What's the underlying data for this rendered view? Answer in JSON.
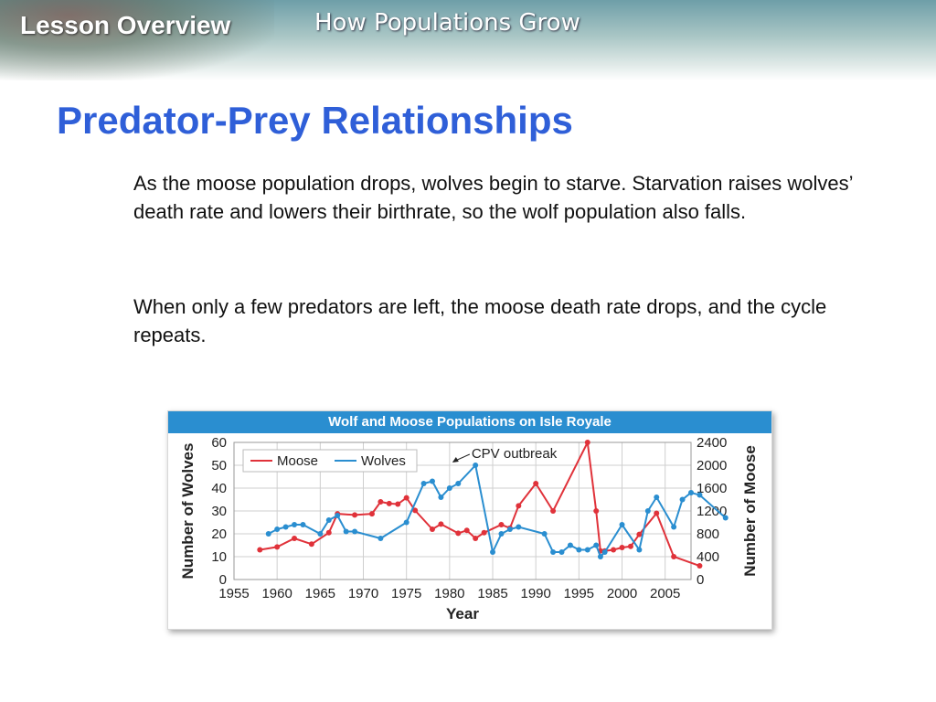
{
  "header": {
    "section": "Lesson Overview",
    "topic": "How Populations Grow"
  },
  "slide": {
    "title": "Predator-Prey Relationships",
    "paragraphs": [
      "As the moose population drops, wolves begin to starve. Starvation raises wolves’ death rate and lowers their birthrate, so the wolf population also falls.",
      "When only a few predators are left, the moose death rate drops, and the cycle repeats."
    ]
  },
  "colors": {
    "moose": "#e0323a",
    "wolves": "#2a8ed0",
    "header_bar": "#2a8ed0",
    "title": "#2f5fd8"
  },
  "chart_data": {
    "type": "line",
    "title": "Wolf and  Moose Populations on Isle Royale",
    "xlabel": "Year",
    "ylabel_left": "Number of Wolves",
    "ylabel_right": "Number of Moose",
    "xlim": [
      1955,
      2008
    ],
    "ylim_left": [
      0,
      60
    ],
    "ylim_right": [
      0,
      2400
    ],
    "x_ticks": [
      1955,
      1960,
      1965,
      1970,
      1975,
      1980,
      1985,
      1990,
      1995,
      2000,
      2005
    ],
    "y_ticks_left": [
      0,
      10,
      20,
      30,
      40,
      50,
      60
    ],
    "y_ticks_right": [
      0,
      400,
      800,
      1200,
      1600,
      2000,
      2400
    ],
    "grid": true,
    "legend": "top-left",
    "annotation": {
      "text": "CPV outbreak",
      "x": 1980,
      "y": 50
    },
    "series": [
      {
        "name": "Moose",
        "axis": "right",
        "points": [
          [
            1958,
            520
          ],
          [
            1960,
            570
          ],
          [
            1962,
            720
          ],
          [
            1964,
            620
          ],
          [
            1966,
            820
          ],
          [
            1967,
            1150
          ],
          [
            1969,
            1130
          ],
          [
            1971,
            1150
          ],
          [
            1972,
            1360
          ],
          [
            1973,
            1330
          ],
          [
            1974,
            1320
          ],
          [
            1975,
            1430
          ],
          [
            1976,
            1210
          ],
          [
            1978,
            880
          ],
          [
            1979,
            970
          ],
          [
            1981,
            810
          ],
          [
            1982,
            860
          ],
          [
            1983,
            720
          ],
          [
            1984,
            820
          ],
          [
            1986,
            960
          ],
          [
            1987,
            900
          ],
          [
            1988,
            1290
          ],
          [
            1990,
            1680
          ],
          [
            1992,
            1200
          ],
          [
            1996,
            2400
          ],
          [
            1997,
            1200
          ],
          [
            1997.5,
            500
          ],
          [
            1998,
            500
          ],
          [
            1999,
            520
          ],
          [
            2000,
            560
          ],
          [
            2001,
            580
          ],
          [
            2002,
            790
          ],
          [
            2004,
            1160
          ],
          [
            2006,
            400
          ],
          [
            2009,
            240
          ]
        ]
      },
      {
        "name": "Wolves",
        "axis": "left",
        "points": [
          [
            1959,
            20
          ],
          [
            1960,
            22
          ],
          [
            1961,
            23
          ],
          [
            1962,
            24
          ],
          [
            1963,
            24
          ],
          [
            1965,
            20
          ],
          [
            1966,
            26
          ],
          [
            1967,
            28
          ],
          [
            1968,
            21
          ],
          [
            1969,
            21
          ],
          [
            1972,
            18
          ],
          [
            1975,
            25
          ],
          [
            1977,
            42
          ],
          [
            1978,
            43
          ],
          [
            1979,
            36
          ],
          [
            1980,
            40
          ],
          [
            1981,
            42
          ],
          [
            1983,
            50
          ],
          [
            1985,
            12
          ],
          [
            1986,
            20
          ],
          [
            1987,
            22
          ],
          [
            1988,
            23
          ],
          [
            1991,
            20
          ],
          [
            1992,
            12
          ],
          [
            1993,
            12
          ],
          [
            1994,
            15
          ],
          [
            1995,
            13
          ],
          [
            1996,
            13
          ],
          [
            1997,
            15
          ],
          [
            1997.5,
            10
          ],
          [
            1998,
            12
          ],
          [
            2000,
            24
          ],
          [
            2002,
            13
          ],
          [
            2003,
            30
          ],
          [
            2004,
            36
          ],
          [
            2006,
            23
          ],
          [
            2007,
            35
          ],
          [
            2008,
            38
          ],
          [
            2009,
            37
          ],
          [
            2012,
            27
          ]
        ]
      }
    ]
  }
}
